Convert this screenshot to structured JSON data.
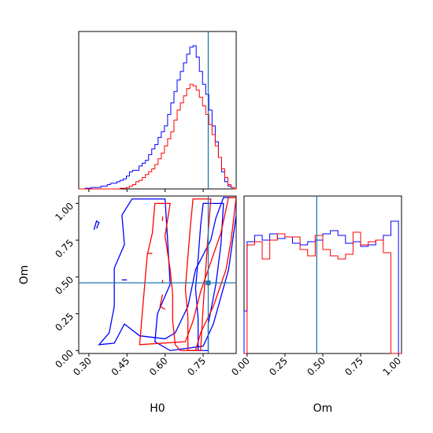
{
  "chart_data": {
    "type": "corner",
    "parameters": [
      "H0",
      "Om"
    ],
    "truth": {
      "H0": 0.77,
      "Om": 0.46
    },
    "colors": {
      "series_a": "#0000ff",
      "series_b": "#ff0000",
      "truth": "#1f77b4"
    },
    "panels": [
      {
        "id": "H0-marginal",
        "type": "histogram",
        "xlim": [
          0.26,
          0.88
        ],
        "x_ticks": [],
        "y_ticks": [],
        "bin_edges": [
          0.26,
          0.2725,
          0.285,
          0.2975,
          0.31,
          0.3225,
          0.335,
          0.3475,
          0.36,
          0.3725,
          0.385,
          0.3975,
          0.41,
          0.4225,
          0.435,
          0.4475,
          0.46,
          0.4725,
          0.485,
          0.4975,
          0.51,
          0.5225,
          0.535,
          0.5475,
          0.56,
          0.5725,
          0.585,
          0.5975,
          0.61,
          0.6225,
          0.635,
          0.6475,
          0.66,
          0.6725,
          0.685,
          0.6975,
          0.71,
          0.7225,
          0.735,
          0.7475,
          0.76,
          0.7725,
          0.785,
          0.7975,
          0.81,
          0.8225,
          0.835,
          0.8475,
          0.86,
          0.8725,
          0.88
        ],
        "series": [
          {
            "color": "blue",
            "counts": [
              0,
              0,
              0.5,
              0.5,
              1,
              1,
              1,
              2,
              2,
              3,
              4,
              4,
              5,
              6,
              7,
              9,
              12,
              13,
              13,
              16,
              18,
              20,
              24,
              28,
              31,
              36,
              40,
              44,
              52,
              60,
              68,
              76,
              82,
              88,
              94,
              99,
              100,
              92,
              82,
              73,
              66,
              55,
              44,
              33,
              22,
              12,
              5,
              2,
              1,
              0
            ]
          },
          {
            "color": "red",
            "counts": [
              0,
              0,
              0,
              0,
              0,
              0,
              0,
              0,
              0,
              0,
              0,
              0,
              0,
              0.5,
              0.5,
              1,
              2,
              3,
              5,
              6,
              8,
              10,
              12,
              14,
              17,
              21,
              25,
              30,
              35,
              40,
              48,
              55,
              60,
              65,
              70,
              73,
              72,
              69,
              64,
              58,
              52,
              45,
              38,
              30,
              22,
              14,
              8,
              3,
              1,
              0
            ]
          }
        ]
      },
      {
        "id": "H0-Om-joint",
        "type": "contour",
        "xlim": [
          0.26,
          0.88
        ],
        "ylim": [
          -0.02,
          1.05
        ],
        "x_ticks": [
          "0.30",
          "0.45",
          "0.60",
          "0.75"
        ],
        "y_ticks": [
          "0.00",
          "0.25",
          "0.50",
          "0.75",
          "1.00"
        ],
        "xlabel": "H0",
        "ylabel": "Om",
        "series": [
          {
            "color": "blue",
            "level": "inner",
            "points": [
              [
                0.73,
                0.0
              ],
              [
                0.73,
                0.22
              ],
              [
                0.72,
                0.42
              ],
              [
                0.73,
                0.62
              ],
              [
                0.74,
                0.85
              ],
              [
                0.75,
                1.0
              ],
              [
                0.83,
                1.0
              ],
              [
                0.82,
                0.72
              ],
              [
                0.8,
                0.45
              ],
              [
                0.77,
                0.18
              ],
              [
                0.77,
                0.0
              ]
            ]
          },
          {
            "color": "blue",
            "level": "outer",
            "points": [
              [
                0.34,
                0.04
              ],
              [
                0.38,
                0.12
              ],
              [
                0.4,
                0.3
              ],
              [
                0.4,
                0.56
              ],
              [
                0.44,
                0.72
              ],
              [
                0.43,
                0.92
              ],
              [
                0.47,
                1.03
              ],
              [
                0.6,
                1.03
              ],
              [
                0.61,
                0.75
              ],
              [
                0.62,
                0.45
              ],
              [
                0.57,
                0.25
              ],
              [
                0.56,
                0.06
              ],
              [
                0.62,
                0.0
              ],
              [
                0.75,
                0.03
              ],
              [
                0.79,
                0.18
              ],
              [
                0.85,
                0.55
              ],
              [
                0.88,
                0.92
              ],
              [
                0.88,
                1.04
              ],
              [
                0.83,
                1.04
              ],
              [
                0.8,
                0.9
              ],
              [
                0.78,
                0.75
              ],
              [
                0.72,
                0.55
              ],
              [
                0.69,
                0.3
              ],
              [
                0.64,
                0.12
              ],
              [
                0.6,
                0.08
              ],
              [
                0.5,
                0.1
              ],
              [
                0.44,
                0.18
              ],
              [
                0.4,
                0.05
              ]
            ]
          },
          {
            "color": "red",
            "level": "inner",
            "points": [
              [
                0.69,
                0.0
              ],
              [
                0.69,
                0.22
              ],
              [
                0.68,
                0.42
              ],
              [
                0.69,
                0.64
              ],
              [
                0.7,
                0.85
              ],
              [
                0.71,
                1.03
              ],
              [
                0.78,
                1.03
              ],
              [
                0.77,
                0.8
              ],
              [
                0.76,
                0.55
              ],
              [
                0.75,
                0.3
              ],
              [
                0.74,
                0.0
              ]
            ]
          },
          {
            "color": "red",
            "level": "outer",
            "points": [
              [
                0.5,
                0.04
              ],
              [
                0.51,
                0.25
              ],
              [
                0.52,
                0.45
              ],
              [
                0.53,
                0.65
              ],
              [
                0.55,
                0.8
              ],
              [
                0.56,
                1.0
              ],
              [
                0.62,
                1.0
              ],
              [
                0.6,
                0.78
              ],
              [
                0.62,
                0.55
              ],
              [
                0.63,
                0.38
              ],
              [
                0.63,
                0.2
              ],
              [
                0.64,
                0.04
              ],
              [
                0.66,
                0.0
              ],
              [
                0.72,
                0.0
              ],
              [
                0.74,
                0.12
              ],
              [
                0.79,
                0.3
              ],
              [
                0.84,
                0.55
              ],
              [
                0.86,
                0.75
              ],
              [
                0.88,
                1.04
              ],
              [
                0.85,
                1.04
              ],
              [
                0.82,
                0.8
              ],
              [
                0.78,
                0.6
              ],
              [
                0.74,
                0.4
              ],
              [
                0.71,
                0.2
              ],
              [
                0.68,
                0.06
              ]
            ]
          }
        ],
        "truth_point": {
          "x": 0.77,
          "y": 0.46
        }
      },
      {
        "id": "Om-marginal",
        "type": "histogram",
        "xlim": [
          -0.02,
          1.02
        ],
        "x_ticks": [
          "0.00",
          "0.25",
          "0.50",
          "0.75",
          "1.00"
        ],
        "y_ticks": [],
        "xlabel": "Om",
        "bin_edges": [
          -0.02,
          0.0,
          0.05,
          0.1,
          0.15,
          0.2,
          0.25,
          0.3,
          0.35,
          0.4,
          0.45,
          0.5,
          0.55,
          0.6,
          0.65,
          0.7,
          0.75,
          0.8,
          0.85,
          0.9,
          0.95,
          1.0,
          1.02
        ],
        "series": [
          {
            "color": "blue",
            "counts": [
              0.27,
              0.71,
              0.75,
              0.72,
              0.76,
              0.73,
              0.74,
              0.7,
              0.69,
              0.71,
              0.72,
              0.76,
              0.78,
              0.75,
              0.7,
              0.71,
              0.68,
              0.69,
              0.72,
              0.75,
              0.84,
              0.0
            ]
          },
          {
            "color": "red",
            "counts": [
              0.0,
              0.69,
              0.71,
              0.6,
              0.72,
              0.76,
              0.74,
              0.74,
              0.66,
              0.62,
              0.75,
              0.66,
              0.62,
              0.6,
              0.63,
              0.77,
              0.69,
              0.71,
              0.72,
              0.64,
              0.0,
              0.0
            ]
          }
        ]
      }
    ]
  }
}
